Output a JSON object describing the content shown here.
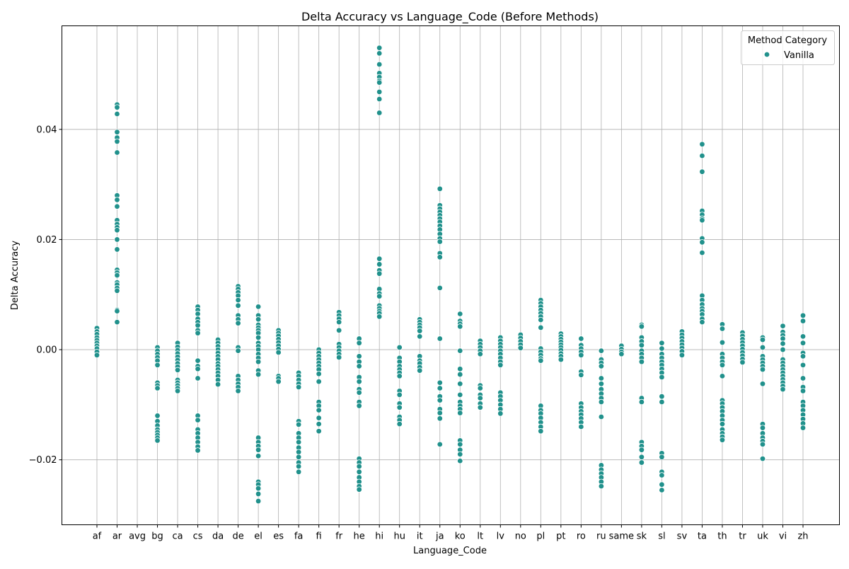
{
  "chart_data": {
    "type": "scatter",
    "title": "Delta Accuracy vs Language_Code (Before Methods)",
    "xlabel": "Language_Code",
    "ylabel": "Delta Accuracy",
    "categories": [
      "af",
      "ar",
      "avg",
      "bg",
      "ca",
      "cs",
      "da",
      "de",
      "el",
      "es",
      "fa",
      "fi",
      "fr",
      "he",
      "hi",
      "hu",
      "it",
      "ja",
      "ko",
      "lt",
      "lv",
      "no",
      "pl",
      "pt",
      "ro",
      "ru",
      "same",
      "sk",
      "sl",
      "sv",
      "ta",
      "th",
      "tr",
      "uk",
      "vi",
      "zh"
    ],
    "ylim": [
      -0.0318,
      0.0588
    ],
    "yticks": [
      -0.02,
      0.0,
      0.02,
      0.04
    ],
    "yticklabels": [
      "−0.02",
      "0.00",
      "0.02",
      "0.04"
    ],
    "grid": true,
    "legend": {
      "title": "Method Category",
      "placement": "top-right",
      "entries": [
        "Vanilla"
      ]
    },
    "series": [
      {
        "name": "Vanilla",
        "color": "#21918c",
        "points": {
          "af": [
            0.0039,
            0.0033,
            0.0028,
            0.0022,
            0.0017,
            0.0012,
            0.0007,
            0.0002,
            -0.0004,
            -0.001
          ],
          "ar": [
            0.0445,
            0.044,
            0.0428,
            0.0395,
            0.0385,
            0.0378,
            0.0358,
            0.028,
            0.0272,
            0.026,
            0.0235,
            0.0228,
            0.0222,
            0.0217,
            0.02,
            0.0182,
            0.0145,
            0.014,
            0.0135,
            0.0122,
            0.0118,
            0.0112,
            0.0107,
            0.0072,
            0.007,
            0.005
          ],
          "avg": [],
          "bg": [
            0.0004,
            -0.0002,
            -0.0008,
            -0.0014,
            -0.002,
            -0.0028,
            -0.006,
            -0.0065,
            -0.007,
            -0.012,
            -0.013,
            -0.0138,
            -0.0145,
            -0.015,
            -0.0155,
            -0.016,
            -0.0165
          ],
          "ca": [
            0.0012,
            0.0005,
            -0.0001,
            -0.0007,
            -0.0013,
            -0.0019,
            -0.0025,
            -0.0031,
            -0.0037,
            -0.0055,
            -0.006,
            -0.0065,
            -0.007,
            -0.0075
          ],
          "cs": [
            0.0078,
            0.0072,
            0.0065,
            0.0056,
            0.005,
            0.0044,
            0.0035,
            0.003,
            -0.002,
            -0.003,
            -0.0035,
            -0.0052,
            -0.012,
            -0.0128,
            -0.0145,
            -0.0152,
            -0.016,
            -0.0168,
            -0.0176,
            -0.0183
          ],
          "da": [
            0.0018,
            0.0012,
            0.0006,
            0.0,
            -0.0006,
            -0.0012,
            -0.0018,
            -0.0025,
            -0.003,
            -0.0036,
            -0.0042,
            -0.0048,
            -0.0055,
            -0.0063
          ],
          "de": [
            0.0115,
            0.011,
            0.0104,
            0.0098,
            0.009,
            0.008,
            0.0062,
            0.0055,
            0.0048,
            0.0004,
            -0.0002,
            -0.0048,
            -0.0055,
            -0.0062,
            -0.0068,
            -0.0075
          ],
          "el": [
            0.0078,
            0.0062,
            0.0055,
            0.0045,
            0.004,
            0.0035,
            0.003,
            0.0022,
            0.0012,
            0.0006,
            0.0,
            -0.0008,
            -0.0015,
            -0.0022,
            -0.0038,
            -0.0045,
            -0.016,
            -0.0168,
            -0.0175,
            -0.0182,
            -0.0193,
            -0.024,
            -0.0245,
            -0.0252,
            -0.0262,
            -0.0275
          ],
          "es": [
            0.0035,
            0.003,
            0.0025,
            0.0019,
            0.0013,
            0.0007,
            0.0001,
            -0.0005,
            -0.0048,
            -0.0052,
            -0.0058
          ],
          "fa": [
            -0.0042,
            -0.0048,
            -0.0055,
            -0.0062,
            -0.0068,
            -0.013,
            -0.0136,
            -0.0152,
            -0.016,
            -0.0168,
            -0.0178,
            -0.0186,
            -0.0195,
            -0.0205,
            -0.0212,
            -0.0222
          ],
          "fi": [
            0.0,
            -0.0006,
            -0.0012,
            -0.0018,
            -0.0024,
            -0.003,
            -0.0036,
            -0.0044,
            -0.0058,
            -0.0095,
            -0.0102,
            -0.011,
            -0.0124,
            -0.0135,
            -0.0148
          ],
          "fr": [
            0.0068,
            0.0062,
            0.0056,
            0.005,
            0.0035,
            0.001,
            0.0004,
            -0.0002,
            -0.0008,
            -0.0014
          ],
          "he": [
            0.002,
            0.0012,
            -0.0012,
            -0.0022,
            -0.003,
            -0.005,
            -0.0058,
            -0.0072,
            -0.0078,
            -0.0095,
            -0.0102,
            -0.0198,
            -0.0205,
            -0.0212,
            -0.0222,
            -0.0232,
            -0.024,
            -0.0248,
            -0.0254
          ],
          "hi": [
            0.0548,
            0.0538,
            0.0518,
            0.0502,
            0.0495,
            0.0488,
            0.0485,
            0.0468,
            0.0455,
            0.043,
            0.0165,
            0.0155,
            0.0144,
            0.0138,
            0.011,
            0.0102,
            0.0097,
            0.008,
            0.0075,
            0.007,
            0.0066,
            0.006
          ],
          "hu": [
            0.0004,
            -0.0015,
            -0.0022,
            -0.003,
            -0.0036,
            -0.0042,
            -0.0048,
            -0.0075,
            -0.0082,
            -0.0098,
            -0.0105,
            -0.0122,
            -0.0128,
            -0.0135
          ],
          "it": [
            0.0055,
            0.005,
            0.0045,
            0.004,
            0.0034,
            0.0024,
            -0.0012,
            -0.002,
            -0.0025,
            -0.0032,
            -0.0038
          ],
          "ja": [
            0.0292,
            0.0262,
            0.0256,
            0.025,
            0.0244,
            0.0238,
            0.0232,
            0.0225,
            0.0218,
            0.021,
            0.0202,
            0.0196,
            0.0175,
            0.0168,
            0.0112,
            0.002,
            -0.006,
            -0.007,
            -0.0085,
            -0.0092,
            -0.0108,
            -0.0115,
            -0.0125,
            -0.0172
          ],
          "ko": [
            0.0065,
            0.0052,
            0.0047,
            0.0042,
            -0.0002,
            -0.0035,
            -0.0045,
            -0.0062,
            -0.0082,
            -0.0095,
            -0.0102,
            -0.0108,
            -0.0115,
            -0.0165,
            -0.0172,
            -0.0182,
            -0.019,
            -0.0202
          ],
          "lt": [
            0.0016,
            0.001,
            0.0004,
            -0.0002,
            -0.0008,
            -0.0065,
            -0.007,
            -0.0082,
            -0.0088,
            -0.0098,
            -0.0105
          ],
          "lv": [
            0.0022,
            0.0016,
            0.001,
            0.0004,
            -0.0002,
            -0.0008,
            -0.0015,
            -0.0022,
            -0.0028,
            -0.0078,
            -0.0085,
            -0.0092,
            -0.01,
            -0.0108,
            -0.0116
          ],
          "no": [
            0.0027,
            0.0021,
            0.0015,
            0.0009,
            0.0003
          ],
          "pl": [
            0.009,
            0.0084,
            0.0078,
            0.0072,
            0.0066,
            0.006,
            0.0054,
            0.004,
            0.0002,
            -0.0004,
            -0.001,
            -0.0016,
            -0.002,
            -0.0102,
            -0.011,
            -0.0116,
            -0.0124,
            -0.0132,
            -0.014,
            -0.0148
          ],
          "pt": [
            0.0029,
            0.0024,
            0.0019,
            0.0014,
            0.0009,
            0.0004,
            -0.0001,
            -0.0007,
            -0.0012,
            -0.0018
          ],
          "ro": [
            0.002,
            0.0008,
            0.0002,
            -0.0004,
            -0.001,
            -0.004,
            -0.0046,
            -0.0098,
            -0.0105,
            -0.0112,
            -0.0118,
            -0.0125,
            -0.0132,
            -0.014
          ],
          "ru": [
            -0.0002,
            -0.0018,
            -0.0024,
            -0.003,
            -0.0052,
            -0.0062,
            -0.0072,
            -0.008,
            -0.0088,
            -0.0095,
            -0.0122,
            -0.021,
            -0.0218,
            -0.0225,
            -0.0232,
            -0.024,
            -0.0248
          ],
          "same": [
            0.0007,
            0.0001,
            -0.0004,
            -0.0008
          ],
          "sk": [
            0.0045,
            0.0042,
            0.0022,
            0.0015,
            0.0008,
            -0.0002,
            -0.0008,
            -0.0015,
            -0.0022,
            -0.0088,
            -0.0095,
            -0.0168,
            -0.0175,
            -0.0182,
            -0.0195,
            -0.0205
          ],
          "sl": [
            0.0012,
            0.0002,
            -0.0008,
            -0.0015,
            -0.0022,
            -0.0028,
            -0.0035,
            -0.0042,
            -0.005,
            -0.0085,
            -0.0095,
            -0.0188,
            -0.0195,
            -0.0222,
            -0.0228,
            -0.0245,
            -0.0255
          ],
          "sv": [
            0.0033,
            0.0027,
            0.0021,
            0.0015,
            0.0009,
            0.0003,
            -0.0003,
            -0.001
          ],
          "ta": [
            0.0373,
            0.0352,
            0.0323,
            0.0252,
            0.0245,
            0.0238,
            0.0235,
            0.0202,
            0.0195,
            0.0176,
            0.0098,
            0.009,
            0.0082,
            0.0075,
            0.007,
            0.0064,
            0.0056,
            0.005
          ],
          "th": [
            0.0046,
            0.0038,
            0.0013,
            -0.0008,
            -0.0015,
            -0.0022,
            -0.0028,
            -0.0048,
            -0.0092,
            -0.0098,
            -0.0105,
            -0.0112,
            -0.012,
            -0.0128,
            -0.0135,
            -0.0145,
            -0.0152,
            -0.0158,
            -0.0164
          ],
          "tr": [
            0.0031,
            0.0025,
            0.0019,
            0.0013,
            0.0007,
            0.0001,
            -0.0005,
            -0.0011,
            -0.0017,
            -0.0023
          ],
          "uk": [
            0.0022,
            0.0018,
            0.0004,
            -0.0012,
            -0.0018,
            -0.0024,
            -0.003,
            -0.0036,
            -0.0062,
            -0.0135,
            -0.0142,
            -0.0152,
            -0.016,
            -0.0166,
            -0.0172,
            -0.0198
          ],
          "vi": [
            0.0043,
            0.0032,
            0.0026,
            0.002,
            0.0011,
            0.0,
            -0.0018,
            -0.0024,
            -0.003,
            -0.0036,
            -0.0042,
            -0.0048,
            -0.0054,
            -0.006,
            -0.0066,
            -0.0072
          ],
          "zh": [
            0.0062,
            0.0052,
            0.0024,
            0.0012,
            -0.0006,
            -0.0012,
            -0.0028,
            -0.0052,
            -0.0068,
            -0.0075,
            -0.0095,
            -0.0102,
            -0.011,
            -0.0118,
            -0.0126,
            -0.0134,
            -0.0142
          ]
        }
      }
    ]
  }
}
